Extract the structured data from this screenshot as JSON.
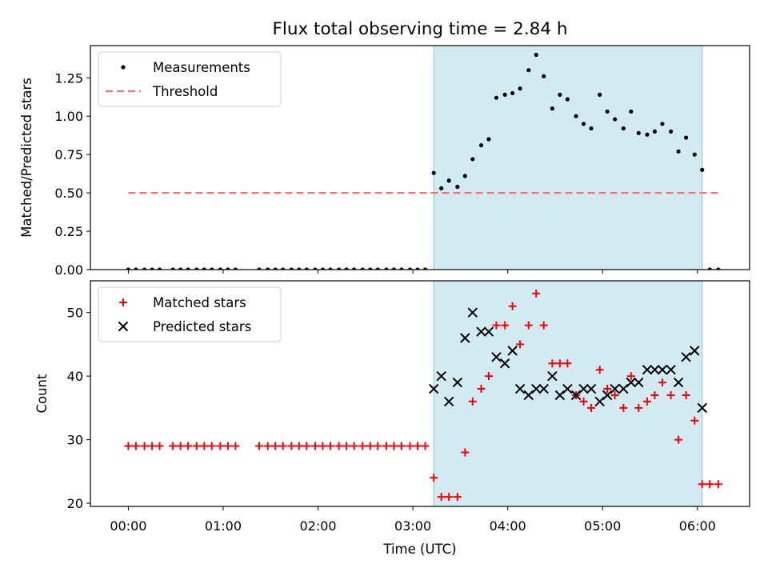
{
  "chart_data": [
    {
      "type": "scatter",
      "title": "Flux total observing time = 2.84 h",
      "xlabel": "",
      "ylabel": "Matched/Predicted stars",
      "xlim": [
        -0.4,
        6.55
      ],
      "ylim": [
        0,
        1.46
      ],
      "yticks": [
        0.0,
        0.25,
        0.5,
        0.75,
        1.0,
        1.25
      ],
      "ytick_labels": [
        "0.00",
        "0.25",
        "0.50",
        "0.75",
        "1.00",
        "1.25"
      ],
      "xticks": [
        0,
        1,
        2,
        3,
        4,
        5,
        6
      ],
      "shade_span": [
        3.22,
        6.05
      ],
      "shade_color": "#add8e6",
      "legend_position": "upper-left",
      "series": [
        {
          "name": "Measurements",
          "marker": "dot",
          "color": "#000000",
          "x": [
            0.0,
            0.08,
            0.17,
            0.25,
            0.33,
            0.47,
            0.55,
            0.63,
            0.72,
            0.8,
            0.88,
            0.97,
            1.05,
            1.13,
            1.38,
            1.47,
            1.55,
            1.63,
            1.72,
            1.8,
            1.88,
            1.97,
            2.05,
            2.13,
            2.22,
            2.3,
            2.38,
            2.47,
            2.55,
            2.63,
            2.72,
            2.8,
            2.88,
            2.97,
            3.05,
            3.13,
            3.22,
            3.3,
            3.38,
            3.47,
            3.55,
            3.63,
            3.72,
            3.8,
            3.88,
            3.97,
            4.05,
            4.13,
            4.22,
            4.3,
            4.38,
            4.47,
            4.55,
            4.63,
            4.72,
            4.8,
            4.88,
            4.97,
            5.05,
            5.13,
            5.22,
            5.3,
            5.38,
            5.47,
            5.55,
            5.63,
            5.72,
            5.8,
            5.88,
            5.97,
            6.05,
            6.13,
            6.22
          ],
          "y": [
            0,
            0,
            0,
            0,
            0,
            0,
            0,
            0,
            0,
            0,
            0,
            0,
            0,
            0,
            0,
            0,
            0,
            0,
            0,
            0,
            0,
            0,
            0,
            0,
            0,
            0,
            0,
            0,
            0,
            0,
            0,
            0,
            0,
            0,
            0,
            0,
            0.63,
            0.53,
            0.58,
            0.54,
            0.61,
            0.72,
            0.81,
            0.85,
            1.12,
            1.14,
            1.15,
            1.18,
            1.3,
            1.4,
            1.26,
            1.05,
            1.14,
            1.11,
            1.0,
            0.95,
            0.92,
            1.14,
            1.03,
            0.98,
            0.92,
            1.03,
            0.89,
            0.88,
            0.9,
            0.95,
            0.9,
            0.77,
            0.86,
            0.75,
            0.65,
            0,
            0
          ]
        },
        {
          "name": "Threshold",
          "marker": "dashed-line",
          "color": "#ff7070",
          "x": [
            0.0,
            6.22
          ],
          "y": [
            0.5,
            0.5
          ]
        }
      ]
    },
    {
      "type": "scatter",
      "title": "",
      "xlabel": "Time (UTC)",
      "ylabel": "Count",
      "xlim": [
        -0.4,
        6.55
      ],
      "ylim": [
        19.5,
        55.0
      ],
      "yticks": [
        20,
        30,
        40,
        50
      ],
      "ytick_labels": [
        "20",
        "30",
        "40",
        "50"
      ],
      "xticks": [
        0,
        1,
        2,
        3,
        4,
        5,
        6
      ],
      "xtick_labels": [
        "00:00",
        "01:00",
        "02:00",
        "03:00",
        "04:00",
        "05:00",
        "06:00"
      ],
      "shade_span": [
        3.22,
        6.05
      ],
      "shade_color": "#add8e6",
      "legend_position": "upper-left",
      "series": [
        {
          "name": "Matched stars",
          "marker": "plus",
          "color": "#ff0000",
          "x": [
            0.0,
            0.08,
            0.17,
            0.25,
            0.33,
            0.47,
            0.55,
            0.63,
            0.72,
            0.8,
            0.88,
            0.97,
            1.05,
            1.13,
            1.38,
            1.47,
            1.55,
            1.63,
            1.72,
            1.8,
            1.88,
            1.97,
            2.05,
            2.13,
            2.22,
            2.3,
            2.38,
            2.47,
            2.55,
            2.63,
            2.72,
            2.8,
            2.88,
            2.97,
            3.05,
            3.13,
            3.22,
            3.3,
            3.38,
            3.47,
            3.55,
            3.63,
            3.72,
            3.8,
            3.88,
            3.97,
            4.05,
            4.13,
            4.22,
            4.3,
            4.38,
            4.47,
            4.55,
            4.63,
            4.72,
            4.8,
            4.88,
            4.97,
            5.05,
            5.13,
            5.22,
            5.3,
            5.38,
            5.47,
            5.55,
            5.63,
            5.72,
            5.8,
            5.88,
            5.97,
            6.05,
            6.13,
            6.22
          ],
          "y": [
            29,
            29,
            29,
            29,
            29,
            29,
            29,
            29,
            29,
            29,
            29,
            29,
            29,
            29,
            29,
            29,
            29,
            29,
            29,
            29,
            29,
            29,
            29,
            29,
            29,
            29,
            29,
            29,
            29,
            29,
            29,
            29,
            29,
            29,
            29,
            29,
            24,
            21,
            21,
            21,
            28,
            36,
            38,
            40,
            48,
            48,
            51,
            45,
            48,
            53,
            48,
            42,
            42,
            42,
            37,
            36,
            35,
            41,
            38,
            37,
            35,
            40,
            35,
            36,
            37,
            39,
            37,
            30,
            37,
            33,
            23,
            23,
            23
          ]
        },
        {
          "name": "Predicted stars",
          "marker": "x",
          "color": "#000000",
          "x": [
            3.22,
            3.3,
            3.38,
            3.47,
            3.55,
            3.63,
            3.72,
            3.8,
            3.88,
            3.97,
            4.05,
            4.13,
            4.22,
            4.3,
            4.38,
            4.47,
            4.55,
            4.63,
            4.72,
            4.8,
            4.88,
            4.97,
            5.05,
            5.13,
            5.22,
            5.3,
            5.38,
            5.47,
            5.55,
            5.63,
            5.72,
            5.8,
            5.88,
            5.97,
            6.05
          ],
          "y": [
            38,
            40,
            36,
            39,
            46,
            50,
            47,
            47,
            43,
            42,
            44,
            38,
            37,
            38,
            38,
            40,
            37,
            38,
            37,
            38,
            38,
            36,
            37,
            38,
            38,
            39,
            39,
            41,
            41,
            41,
            41,
            39,
            43,
            44,
            35
          ]
        }
      ]
    }
  ]
}
